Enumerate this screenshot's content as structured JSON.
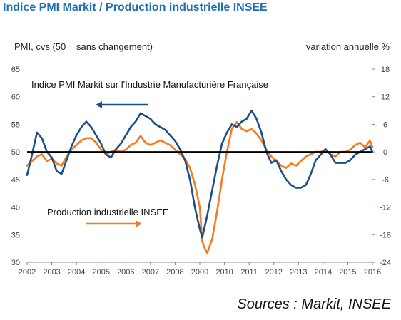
{
  "header": {
    "title": "Indice PMI Markit / Production industrielle INSEE",
    "left_axis_label": "PMI, cvs (50 = sans changement)",
    "right_axis_label": "variation annuelle  %",
    "source": "Sources : Markit, INSEE"
  },
  "colors": {
    "pmi": "#1c4f86",
    "production": "#f47b20",
    "title": "#1f6fb4",
    "baseline": "#000000"
  },
  "chart_data": {
    "type": "line",
    "legend": {
      "pmi_label": "Indice PMI Markit sur l'Industrie Manufacturière Française",
      "production_label": "Production industrielle  INSEE"
    },
    "x_ticks": [
      "2002",
      "2003",
      "2004",
      "2005",
      "2006",
      "2007",
      "2008",
      "2009",
      "2010",
      "2011",
      "2012",
      "2013",
      "2014",
      "2015",
      "2016"
    ],
    "xlim": [
      2002,
      2016
    ],
    "left_axis": {
      "ylim": [
        30,
        65
      ],
      "ticks": [
        30,
        35,
        40,
        45,
        50,
        55,
        60,
        65
      ]
    },
    "right_axis": {
      "ylim": [
        -24,
        18
      ],
      "ticks": [
        -24,
        -18,
        -12,
        -6,
        0,
        6,
        12,
        18
      ]
    },
    "series": [
      {
        "name": "Indice PMI Markit sur l'Industrie Manufacturière Française",
        "axis": "left",
        "points": [
          [
            2002.0,
            45.8
          ],
          [
            2002.2,
            49.5
          ],
          [
            2002.4,
            53.5
          ],
          [
            2002.6,
            52.5
          ],
          [
            2002.8,
            50.0
          ],
          [
            2003.0,
            49.0
          ],
          [
            2003.2,
            46.5
          ],
          [
            2003.4,
            46.0
          ],
          [
            2003.6,
            48.5
          ],
          [
            2003.8,
            51.0
          ],
          [
            2004.0,
            53.0
          ],
          [
            2004.2,
            54.5
          ],
          [
            2004.4,
            55.5
          ],
          [
            2004.6,
            54.5
          ],
          [
            2004.8,
            53.0
          ],
          [
            2005.0,
            51.5
          ],
          [
            2005.2,
            49.5
          ],
          [
            2005.4,
            49.0
          ],
          [
            2005.6,
            50.5
          ],
          [
            2005.8,
            51.5
          ],
          [
            2006.0,
            53.0
          ],
          [
            2006.2,
            54.5
          ],
          [
            2006.4,
            55.5
          ],
          [
            2006.6,
            57.0
          ],
          [
            2006.8,
            56.5
          ],
          [
            2007.0,
            56.0
          ],
          [
            2007.2,
            55.0
          ],
          [
            2007.4,
            54.5
          ],
          [
            2007.6,
            54.0
          ],
          [
            2007.8,
            53.0
          ],
          [
            2008.0,
            52.0
          ],
          [
            2008.2,
            50.5
          ],
          [
            2008.4,
            48.5
          ],
          [
            2008.6,
            45.0
          ],
          [
            2008.8,
            40.0
          ],
          [
            2009.0,
            36.0
          ],
          [
            2009.1,
            34.5
          ],
          [
            2009.3,
            38.5
          ],
          [
            2009.5,
            43.0
          ],
          [
            2009.7,
            47.5
          ],
          [
            2009.9,
            51.5
          ],
          [
            2010.1,
            53.5
          ],
          [
            2010.3,
            55.0
          ],
          [
            2010.5,
            54.5
          ],
          [
            2010.7,
            55.5
          ],
          [
            2010.9,
            56.0
          ],
          [
            2011.1,
            57.5
          ],
          [
            2011.3,
            56.0
          ],
          [
            2011.5,
            53.5
          ],
          [
            2011.7,
            50.0
          ],
          [
            2011.9,
            48.0
          ],
          [
            2012.1,
            48.5
          ],
          [
            2012.3,
            46.5
          ],
          [
            2012.5,
            45.0
          ],
          [
            2012.7,
            44.0
          ],
          [
            2012.9,
            43.5
          ],
          [
            2013.1,
            43.5
          ],
          [
            2013.3,
            44.0
          ],
          [
            2013.5,
            46.0
          ],
          [
            2013.7,
            48.5
          ],
          [
            2013.9,
            49.5
          ],
          [
            2014.1,
            50.5
          ],
          [
            2014.3,
            49.5
          ],
          [
            2014.5,
            48.0
          ],
          [
            2014.7,
            48.0
          ],
          [
            2014.9,
            48.0
          ],
          [
            2015.1,
            48.5
          ],
          [
            2015.3,
            49.5
          ],
          [
            2015.5,
            50.0
          ],
          [
            2015.7,
            50.5
          ],
          [
            2015.9,
            51.0
          ],
          [
            2016.0,
            50.0
          ]
        ]
      },
      {
        "name": "Production industrielle  INSEE",
        "axis": "right",
        "points": [
          [
            2002.0,
            -3.0
          ],
          [
            2002.2,
            -2.0
          ],
          [
            2002.4,
            -1.0
          ],
          [
            2002.6,
            -0.5
          ],
          [
            2002.8,
            -2.0
          ],
          [
            2003.0,
            -1.5
          ],
          [
            2003.2,
            -2.5
          ],
          [
            2003.4,
            -3.0
          ],
          [
            2003.6,
            -1.0
          ],
          [
            2003.8,
            0.5
          ],
          [
            2004.0,
            1.5
          ],
          [
            2004.2,
            2.5
          ],
          [
            2004.4,
            3.0
          ],
          [
            2004.6,
            3.0
          ],
          [
            2004.8,
            2.0
          ],
          [
            2005.0,
            0.5
          ],
          [
            2005.2,
            -0.5
          ],
          [
            2005.4,
            0.0
          ],
          [
            2005.6,
            0.5
          ],
          [
            2005.8,
            0.0
          ],
          [
            2006.0,
            0.5
          ],
          [
            2006.2,
            1.5
          ],
          [
            2006.4,
            2.0
          ],
          [
            2006.6,
            3.5
          ],
          [
            2006.8,
            2.0
          ],
          [
            2007.0,
            1.5
          ],
          [
            2007.2,
            2.0
          ],
          [
            2007.4,
            2.5
          ],
          [
            2007.6,
            2.0
          ],
          [
            2007.8,
            1.5
          ],
          [
            2008.0,
            0.5
          ],
          [
            2008.2,
            -0.5
          ],
          [
            2008.4,
            -1.5
          ],
          [
            2008.6,
            -3.5
          ],
          [
            2008.8,
            -7.0
          ],
          [
            2009.0,
            -12.0
          ],
          [
            2009.1,
            -19.5
          ],
          [
            2009.2,
            -21.0
          ],
          [
            2009.3,
            -22.0
          ],
          [
            2009.5,
            -19.0
          ],
          [
            2009.7,
            -13.0
          ],
          [
            2009.9,
            -6.0
          ],
          [
            2010.1,
            0.0
          ],
          [
            2010.3,
            5.0
          ],
          [
            2010.5,
            6.5
          ],
          [
            2010.7,
            5.0
          ],
          [
            2010.9,
            4.5
          ],
          [
            2011.1,
            5.0
          ],
          [
            2011.3,
            4.0
          ],
          [
            2011.5,
            2.5
          ],
          [
            2011.7,
            0.5
          ],
          [
            2011.9,
            -1.0
          ],
          [
            2012.1,
            -2.0
          ],
          [
            2012.3,
            -3.0
          ],
          [
            2012.5,
            -3.5
          ],
          [
            2012.7,
            -2.5
          ],
          [
            2012.9,
            -3.0
          ],
          [
            2013.1,
            -2.0
          ],
          [
            2013.3,
            -1.0
          ],
          [
            2013.5,
            -0.5
          ],
          [
            2013.7,
            0.0
          ],
          [
            2013.9,
            0.0
          ],
          [
            2014.1,
            0.5
          ],
          [
            2014.3,
            -0.5
          ],
          [
            2014.5,
            -1.0
          ],
          [
            2014.7,
            0.0
          ],
          [
            2014.9,
            0.0
          ],
          [
            2015.1,
            0.5
          ],
          [
            2015.3,
            1.5
          ],
          [
            2015.5,
            2.0
          ],
          [
            2015.7,
            1.0
          ],
          [
            2015.9,
            2.5
          ],
          [
            2016.0,
            1.0
          ]
        ]
      }
    ]
  }
}
